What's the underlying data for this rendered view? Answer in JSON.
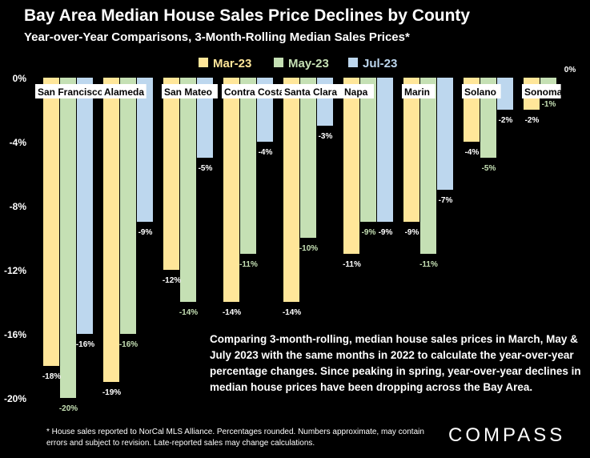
{
  "title": "Bay Area Median House Sales Price Declines by County",
  "subtitle": "Year-over-Year Comparisons, 3-Month-Rolling Median Sales Prices*",
  "annotation": "Comparing 3-month-rolling, median house sales prices in March, May & July 2023 with the same months in 2022 to calculate the year-over-year percentage changes. Since peaking in spring, year-over-year declines in median house prices have been dropping across the Bay Area.",
  "footnote": "* House sales reported to NorCal MLS Alliance. Percentages rounded. Numbers approximate, may contain errors and subject to revision. Late-reported sales may change calculations.",
  "logo": "COMPASS",
  "colors": {
    "background": "#000000",
    "text": "#ffffff",
    "category_label_bg": "#ffffff",
    "category_label_text": "#000000"
  },
  "chart_data": {
    "type": "bar",
    "categories": [
      "San Francisco",
      "Alameda",
      "San Mateo",
      "Contra Costa",
      "Santa Clara",
      "Napa",
      "Marin",
      "Solano",
      "Sonoma"
    ],
    "series": [
      {
        "name": "Mar-23",
        "color": "#ffe699",
        "label_color": "#ffffff",
        "values": [
          -18,
          -19,
          -12,
          -14,
          -14,
          -11,
          -9,
          -4,
          -2
        ]
      },
      {
        "name": "May-23",
        "color": "#c5e0b4",
        "label_color": "#c5e0b4",
        "values": [
          -20,
          -16,
          -14,
          -11,
          -10,
          -9,
          -11,
          -5,
          -1
        ]
      },
      {
        "name": "Jul-23",
        "color": "#bdd7ee",
        "label_color": "#ffffff",
        "values": [
          -16,
          -9,
          -5,
          -4,
          -3,
          -9,
          -7,
          -2,
          0
        ]
      }
    ],
    "data_labels": [
      [
        "-18%",
        "-19%",
        "-12%",
        "-14%",
        "-14%",
        "-11%",
        "-9%",
        "-4%",
        "-2%"
      ],
      [
        "-20%",
        "-16%",
        "-14%",
        "-11%",
        "-10%",
        "-9%",
        "-11%",
        "-5%",
        "-1%"
      ],
      [
        "-16%",
        "-9%",
        "-5%",
        "-4%",
        "-3%",
        "-9%",
        "-7%",
        "-2%",
        "0%"
      ]
    ],
    "y_ticks": [
      0,
      -4,
      -8,
      -12,
      -16,
      -20
    ],
    "y_tick_labels": [
      "0%",
      "-4%",
      "-8%",
      "-12%",
      "-16%",
      "-20%"
    ],
    "ylim": [
      -20,
      0
    ],
    "legend_position": "top-center",
    "grid": false
  }
}
